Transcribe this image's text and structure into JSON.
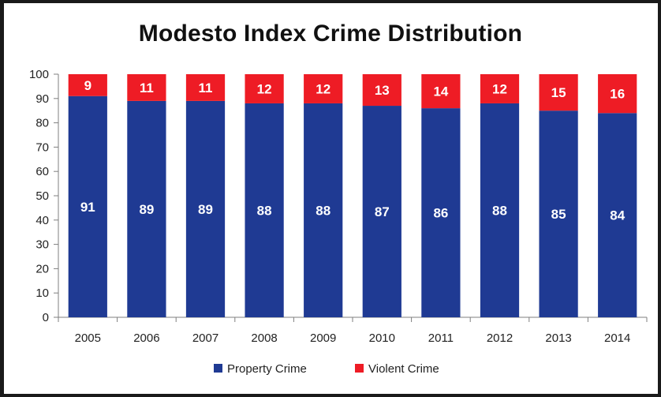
{
  "chart_data": {
    "type": "bar",
    "stacked": true,
    "title": "Modesto Index Crime Distribution",
    "xlabel": "",
    "ylabel": "",
    "ylim": [
      0,
      100
    ],
    "yticks": [
      0,
      10,
      20,
      30,
      40,
      50,
      60,
      70,
      80,
      90,
      100
    ],
    "grid": false,
    "legend_position": "bottom",
    "categories": [
      "2005",
      "2006",
      "2007",
      "2008",
      "2009",
      "2010",
      "2011",
      "2012",
      "2013",
      "2014"
    ],
    "series": [
      {
        "name": "Property Crime",
        "color": "#1f3a93",
        "values": [
          91,
          89,
          89,
          88,
          88,
          87,
          86,
          88,
          85,
          84
        ]
      },
      {
        "name": "Violent Crime",
        "color": "#ee1c25",
        "values": [
          9,
          11,
          11,
          12,
          12,
          13,
          14,
          12,
          15,
          16
        ]
      }
    ]
  }
}
